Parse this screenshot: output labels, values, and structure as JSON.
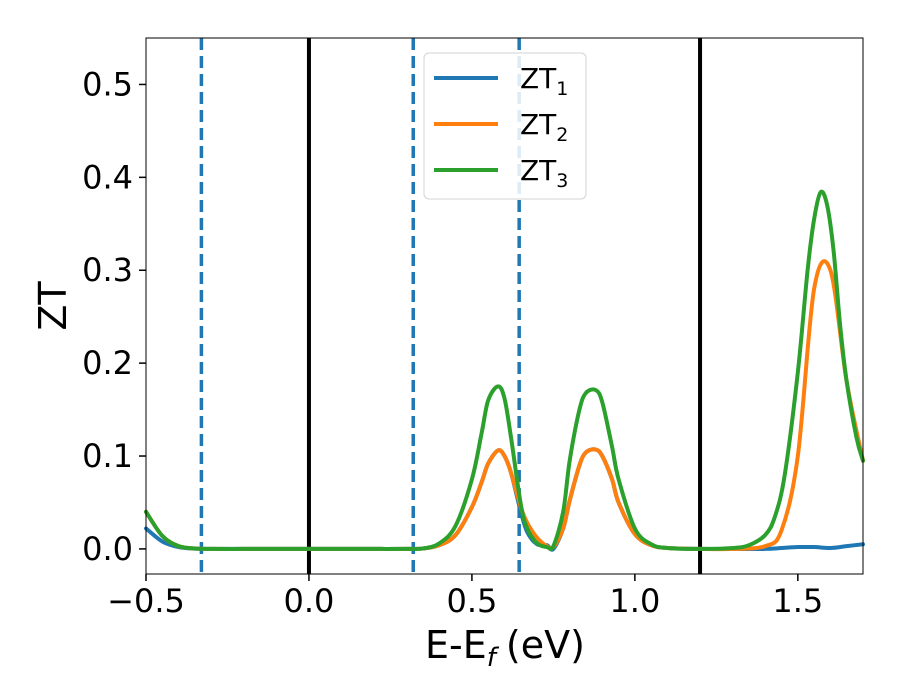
{
  "chart_data": {
    "type": "line",
    "xlabel": "E-E",
    "xlabel_sub": "f",
    "xlabel_unit": "(eV)",
    "ylabel": "ZT",
    "xlim": [
      -0.5,
      1.7
    ],
    "ylim": [
      -0.027,
      0.55
    ],
    "x_ticks": [
      -0.5,
      0.0,
      0.5,
      1.0,
      1.5
    ],
    "x_tick_labels": [
      "−0.5",
      "0.0",
      "0.5",
      "1.0",
      "1.5"
    ],
    "y_ticks": [
      0.0,
      0.1,
      0.2,
      0.3,
      0.4,
      0.5
    ],
    "y_tick_labels": [
      "0.0",
      "0.1",
      "0.2",
      "0.3",
      "0.4",
      "0.5"
    ],
    "grid": false,
    "legend_position": "top-center",
    "vertical_lines": [
      {
        "x": -0.33,
        "style": "dashed",
        "color": "#1f77b4"
      },
      {
        "x": 0.0,
        "style": "solid",
        "color": "#000000"
      },
      {
        "x": 0.32,
        "style": "dashed",
        "color": "#1f77b4"
      },
      {
        "x": 0.645,
        "style": "dashed",
        "color": "#1f77b4"
      },
      {
        "x": 1.2,
        "style": "solid",
        "color": "#000000"
      }
    ],
    "series": [
      {
        "name": "ZT",
        "name_sub": "1",
        "color": "#1f77b4",
        "x": [
          -0.5,
          -0.45,
          -0.4,
          -0.35,
          -0.3,
          -0.2,
          -0.1,
          0.0,
          0.1,
          0.2,
          0.3,
          0.35,
          0.4,
          0.45,
          0.5,
          0.53,
          0.55,
          0.58,
          0.6,
          0.62,
          0.65,
          0.67,
          0.7,
          0.73,
          0.75,
          0.78,
          0.8,
          0.83,
          0.85,
          0.88,
          0.9,
          0.93,
          0.95,
          1.0,
          1.05,
          1.1,
          1.2,
          1.3,
          1.4,
          1.45,
          1.5,
          1.55,
          1.6,
          1.65,
          1.7
        ],
        "y": [
          0.022,
          0.008,
          0.002,
          0.0003,
          0.0,
          0.0,
          0.0,
          0.0,
          0.0,
          0.0,
          0.0,
          0.0005,
          0.004,
          0.015,
          0.045,
          0.072,
          0.092,
          0.106,
          0.1,
          0.082,
          0.04,
          0.018,
          0.005,
          0.004,
          0.0,
          0.022,
          0.052,
          0.09,
          0.104,
          0.107,
          0.1,
          0.075,
          0.05,
          0.016,
          0.004,
          0.001,
          0.0,
          0.0,
          0.0,
          0.001,
          0.002,
          0.002,
          0.001,
          0.003,
          0.005
        ]
      },
      {
        "name": "ZT",
        "name_sub": "2",
        "color": "#ff7f0e",
        "x": [
          -0.5,
          -0.45,
          -0.4,
          -0.35,
          -0.3,
          -0.2,
          -0.1,
          0.0,
          0.1,
          0.2,
          0.3,
          0.35,
          0.4,
          0.45,
          0.5,
          0.53,
          0.55,
          0.58,
          0.6,
          0.62,
          0.65,
          0.67,
          0.7,
          0.73,
          0.75,
          0.78,
          0.8,
          0.83,
          0.85,
          0.88,
          0.9,
          0.93,
          0.95,
          1.0,
          1.05,
          1.1,
          1.2,
          1.3,
          1.4,
          1.45,
          1.5,
          1.55,
          1.6,
          1.65,
          1.7
        ],
        "y": [
          0.04,
          0.014,
          0.003,
          0.0005,
          0.0,
          0.0,
          0.0,
          0.0,
          0.0,
          0.0,
          0.0,
          0.0005,
          0.004,
          0.015,
          0.045,
          0.072,
          0.092,
          0.106,
          0.1,
          0.082,
          0.045,
          0.028,
          0.012,
          0.003,
          0.002,
          0.022,
          0.052,
          0.09,
          0.104,
          0.107,
          0.1,
          0.075,
          0.05,
          0.016,
          0.004,
          0.001,
          0.0,
          0.0,
          0.003,
          0.02,
          0.1,
          0.28,
          0.3,
          0.18,
          0.095
        ]
      },
      {
        "name": "ZT",
        "name_sub": "3",
        "color": "#2ca02c",
        "x": [
          -0.5,
          -0.45,
          -0.4,
          -0.35,
          -0.3,
          -0.2,
          -0.1,
          0.0,
          0.1,
          0.2,
          0.3,
          0.35,
          0.4,
          0.45,
          0.5,
          0.53,
          0.55,
          0.58,
          0.6,
          0.62,
          0.65,
          0.67,
          0.7,
          0.73,
          0.75,
          0.78,
          0.8,
          0.83,
          0.85,
          0.88,
          0.9,
          0.93,
          0.95,
          1.0,
          1.05,
          1.1,
          1.2,
          1.3,
          1.35,
          1.4,
          1.43,
          1.46,
          1.5,
          1.53,
          1.55,
          1.57,
          1.59,
          1.61,
          1.63,
          1.65,
          1.68,
          1.7
        ],
        "y": [
          0.04,
          0.014,
          0.003,
          0.0005,
          0.0,
          0.0,
          0.0,
          0.0,
          0.0,
          0.0,
          0.0,
          0.0005,
          0.006,
          0.025,
          0.075,
          0.125,
          0.16,
          0.175,
          0.162,
          0.12,
          0.048,
          0.022,
          0.006,
          0.002,
          0.003,
          0.04,
          0.095,
          0.15,
          0.168,
          0.171,
          0.158,
          0.11,
          0.075,
          0.022,
          0.005,
          0.001,
          0.0,
          0.001,
          0.004,
          0.015,
          0.035,
          0.08,
          0.19,
          0.3,
          0.355,
          0.384,
          0.37,
          0.32,
          0.24,
          0.18,
          0.12,
          0.095
        ]
      }
    ]
  }
}
